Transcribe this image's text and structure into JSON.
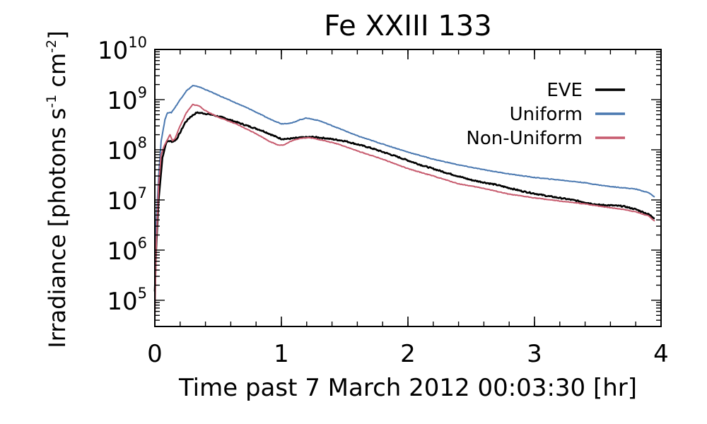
{
  "chart_data": {
    "type": "line",
    "title": "Fe XXIII 133",
    "xlabel": "Time past 7 March 2012 00:03:30 [hr]",
    "ylabel_main": "Irradiance [photons s",
    "ylabel_sup1": "-1",
    "ylabel_mid": " cm",
    "ylabel_sup2": "-2",
    "ylabel_end": "]",
    "xlim": [
      0,
      4
    ],
    "ylim": [
      30000,
      10000000000
    ],
    "yscale": "log",
    "x_ticks": [
      {
        "value": 0,
        "label": "0"
      },
      {
        "value": 1,
        "label": "1"
      },
      {
        "value": 2,
        "label": "2"
      },
      {
        "value": 3,
        "label": "3"
      },
      {
        "value": 4,
        "label": "4"
      }
    ],
    "y_ticks": [
      {
        "value": 100000,
        "base": "10",
        "exp": "5"
      },
      {
        "value": 1000000,
        "base": "10",
        "exp": "6"
      },
      {
        "value": 10000000,
        "base": "10",
        "exp": "7"
      },
      {
        "value": 100000000,
        "base": "10",
        "exp": "8"
      },
      {
        "value": 1000000000,
        "base": "10",
        "exp": "9"
      },
      {
        "value": 10000000000,
        "base": "10",
        "exp": "10"
      }
    ],
    "legend_position": "top-right",
    "grid": false,
    "series": [
      {
        "name": "EVE",
        "color": "#000000",
        "x": [
          0,
          0.01,
          0.03,
          0.06,
          0.09,
          0.11,
          0.14,
          0.17,
          0.2,
          0.24,
          0.28,
          0.33,
          0.37,
          0.45,
          0.55,
          0.7,
          0.85,
          0.95,
          1.0,
          1.05,
          1.15,
          1.25,
          1.35,
          1.5,
          1.7,
          1.9,
          2.1,
          2.3,
          2.5,
          2.7,
          2.9,
          3.1,
          3.3,
          3.5,
          3.6,
          3.7,
          3.8,
          3.9,
          3.95
        ],
        "y": [
          150000,
          1000000,
          10000000,
          70000000,
          140000000,
          150000000,
          145000000,
          160000000,
          220000000,
          350000000,
          450000000,
          550000000,
          540000000,
          500000000,
          430000000,
          320000000,
          240000000,
          185000000,
          165000000,
          165000000,
          175000000,
          180000000,
          170000000,
          150000000,
          110000000,
          75000000,
          50000000,
          35000000,
          25000000,
          20000000,
          15000000,
          12000000,
          10000000,
          8000000,
          7800000,
          7500000,
          6500000,
          5200000,
          4300000
        ]
      },
      {
        "name": "Uniform",
        "color": "#4a78b0",
        "x": [
          0,
          0.01,
          0.03,
          0.05,
          0.08,
          0.1,
          0.13,
          0.16,
          0.2,
          0.25,
          0.3,
          0.35,
          0.45,
          0.6,
          0.75,
          0.9,
          1.0,
          1.08,
          1.15,
          1.2,
          1.3,
          1.45,
          1.6,
          1.8,
          2.0,
          2.2,
          2.4,
          2.6,
          2.8,
          3.0,
          3.2,
          3.4,
          3.5,
          3.6,
          3.7,
          3.8,
          3.9,
          3.95
        ],
        "y": [
          300000,
          3000000,
          30000000,
          150000000,
          400000000,
          550000000,
          550000000,
          700000000,
          1000000000,
          1500000000,
          1900000000,
          1800000000,
          1400000000,
          950000000,
          650000000,
          420000000,
          330000000,
          340000000,
          400000000,
          430000000,
          380000000,
          270000000,
          190000000,
          130000000,
          90000000,
          65000000,
          50000000,
          40000000,
          33000000,
          28000000,
          25000000,
          22000000,
          20000000,
          18500000,
          17500000,
          16500000,
          14000000,
          11500000
        ]
      },
      {
        "name": "Non-Uniform",
        "color": "#c75b6e",
        "x": [
          0,
          0.01,
          0.03,
          0.05,
          0.08,
          0.1,
          0.12,
          0.14,
          0.16,
          0.2,
          0.25,
          0.3,
          0.35,
          0.4,
          0.5,
          0.65,
          0.8,
          0.9,
          0.97,
          1.02,
          1.08,
          1.15,
          1.22,
          1.3,
          1.45,
          1.6,
          1.8,
          2.0,
          2.2,
          2.4,
          2.6,
          2.8,
          3.0,
          3.2,
          3.4,
          3.6,
          3.7,
          3.8,
          3.9,
          3.95
        ],
        "y": [
          40000,
          1000000,
          20000000,
          80000000,
          130000000,
          160000000,
          200000000,
          150000000,
          170000000,
          300000000,
          550000000,
          800000000,
          750000000,
          600000000,
          450000000,
          320000000,
          210000000,
          150000000,
          125000000,
          125000000,
          150000000,
          170000000,
          175000000,
          160000000,
          130000000,
          95000000,
          65000000,
          42000000,
          30000000,
          21000000,
          17000000,
          13000000,
          11000000,
          9500000,
          8300000,
          7000000,
          6500000,
          5800000,
          4800000,
          3800000
        ]
      }
    ]
  }
}
